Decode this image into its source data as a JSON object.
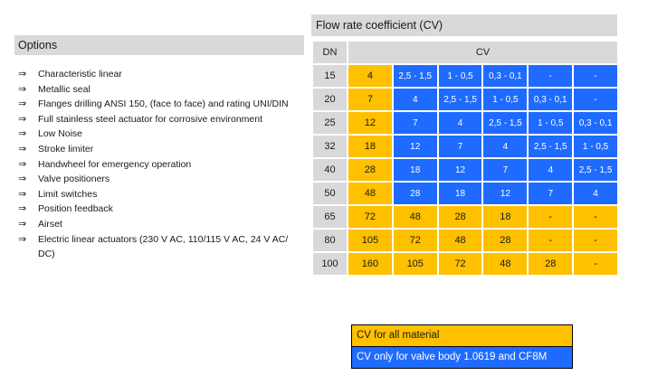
{
  "options": {
    "title": "Options",
    "arrow": "⇒",
    "items": [
      "Characteristic linear",
      "Metallic seal",
      "Flanges drilling ANSI 150, (face to face) and rating UNI/DIN",
      "Full stainless steel actuator for corrosive environment",
      "Low Noise",
      "Stroke limiter",
      "Handwheel for emergency operation",
      "Valve positioners",
      "Limit switches",
      "Position feedback",
      "Airset",
      "Electric linear actuators (230 V AC, 110/115 V AC, 24 V AC/ DC)"
    ]
  },
  "flow_table": {
    "title": "Flow rate coefficient (CV)",
    "dn_header": "DN",
    "cv_header": "CV",
    "colors": {
      "yellow": "#ffc000",
      "blue": "#1f6bff",
      "grey": "#d9d9d9"
    },
    "rows": [
      {
        "dn": "15",
        "cells": [
          [
            "4",
            "y"
          ],
          [
            "2,5 - 1,5",
            "b"
          ],
          [
            "1 - 0,5",
            "b"
          ],
          [
            "0,3 - 0,1",
            "b"
          ],
          [
            "-",
            "b"
          ],
          [
            "-",
            "b"
          ]
        ]
      },
      {
        "dn": "20",
        "cells": [
          [
            "7",
            "y"
          ],
          [
            "4",
            "b"
          ],
          [
            "2,5 - 1,5",
            "b"
          ],
          [
            "1 - 0,5",
            "b"
          ],
          [
            "0,3 - 0,1",
            "b"
          ],
          [
            "-",
            "b"
          ]
        ]
      },
      {
        "dn": "25",
        "cells": [
          [
            "12",
            "y"
          ],
          [
            "7",
            "b"
          ],
          [
            "4",
            "b"
          ],
          [
            "2,5 - 1,5",
            "b"
          ],
          [
            "1 - 0,5",
            "b"
          ],
          [
            "0,3 - 0,1",
            "b"
          ]
        ]
      },
      {
        "dn": "32",
        "cells": [
          [
            "18",
            "y"
          ],
          [
            "12",
            "b"
          ],
          [
            "7",
            "b"
          ],
          [
            "4",
            "b"
          ],
          [
            "2,5 - 1,5",
            "b"
          ],
          [
            "1 - 0,5",
            "b"
          ]
        ]
      },
      {
        "dn": "40",
        "cells": [
          [
            "28",
            "y"
          ],
          [
            "18",
            "b"
          ],
          [
            "12",
            "b"
          ],
          [
            "7",
            "b"
          ],
          [
            "4",
            "b"
          ],
          [
            "2,5 - 1,5",
            "b"
          ]
        ]
      },
      {
        "dn": "50",
        "cells": [
          [
            "48",
            "y"
          ],
          [
            "28",
            "b"
          ],
          [
            "18",
            "b"
          ],
          [
            "12",
            "b"
          ],
          [
            "7",
            "b"
          ],
          [
            "4",
            "b"
          ]
        ]
      },
      {
        "dn": "65",
        "cells": [
          [
            "72",
            "y"
          ],
          [
            "48",
            "y"
          ],
          [
            "28",
            "y"
          ],
          [
            "18",
            "y"
          ],
          [
            "-",
            "y"
          ],
          [
            "-",
            "y"
          ]
        ]
      },
      {
        "dn": "80",
        "cells": [
          [
            "105",
            "y"
          ],
          [
            "72",
            "y"
          ],
          [
            "48",
            "y"
          ],
          [
            "28",
            "y"
          ],
          [
            "-",
            "y"
          ],
          [
            "-",
            "y"
          ]
        ]
      },
      {
        "dn": "100",
        "cells": [
          [
            "160",
            "y"
          ],
          [
            "105",
            "y"
          ],
          [
            "72",
            "y"
          ],
          [
            "48",
            "y"
          ],
          [
            "28",
            "y"
          ],
          [
            "-",
            "y"
          ]
        ]
      }
    ]
  },
  "legend": {
    "yellow_label": "CV for all material",
    "blue_label": "CV only for valve body 1.0619 and CF8M"
  }
}
